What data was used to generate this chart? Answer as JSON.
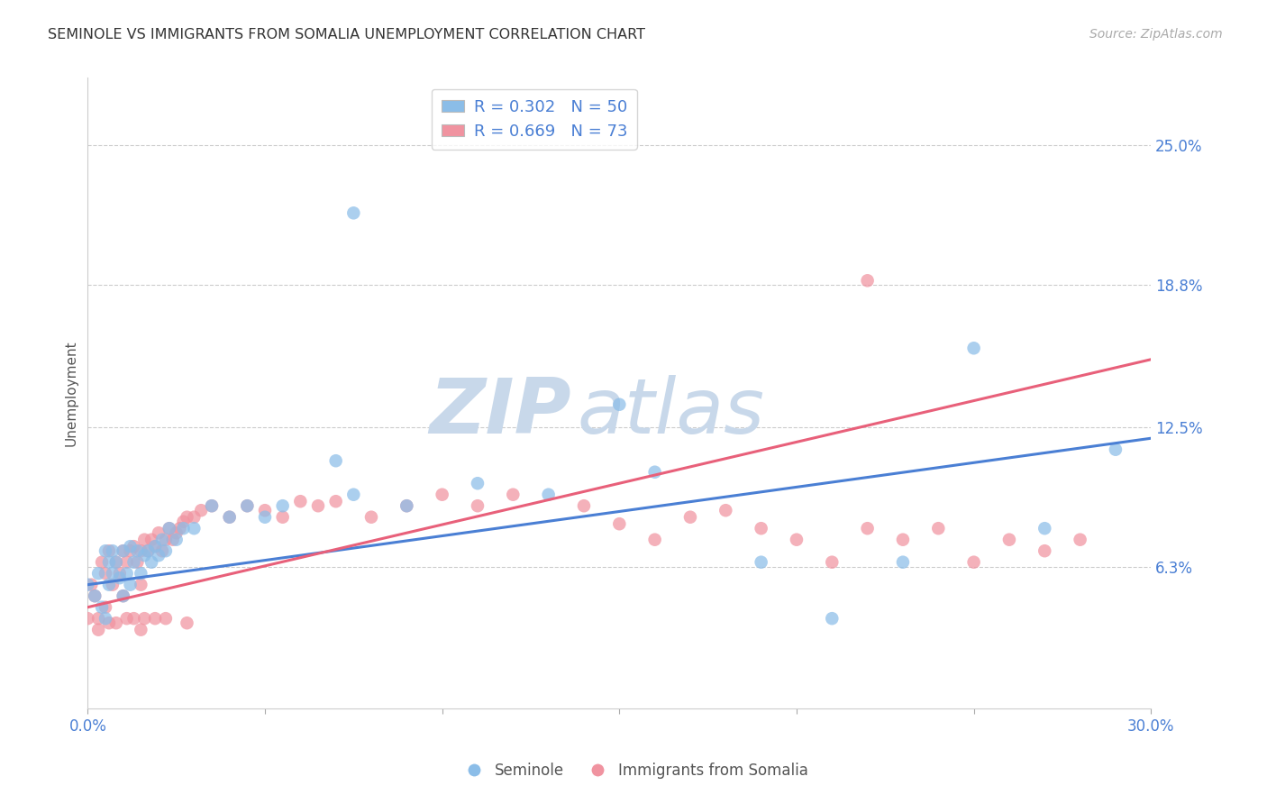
{
  "title": "SEMINOLE VS IMMIGRANTS FROM SOMALIA UNEMPLOYMENT CORRELATION CHART",
  "source": "Source: ZipAtlas.com",
  "ylabel": "Unemployment",
  "ytick_labels": [
    "6.3%",
    "12.5%",
    "18.8%",
    "25.0%"
  ],
  "ytick_values": [
    0.063,
    0.125,
    0.188,
    0.25
  ],
  "xlim": [
    0.0,
    0.3
  ],
  "ylim": [
    0.0,
    0.28
  ],
  "legend_blue_text": "R = 0.302   N = 50",
  "legend_pink_text": "R = 0.669   N = 73",
  "legend_label_blue": "Seminole",
  "legend_label_pink": "Immigrants from Somalia",
  "blue_color": "#8bbde8",
  "pink_color": "#f093a0",
  "blue_line_color": "#4a7fd4",
  "pink_line_color": "#e8607a",
  "legend_text_color": "#4a7fd4",
  "ytick_color": "#4a7fd4",
  "xtick_color": "#4a7fd4",
  "watermark_zip": "ZIP",
  "watermark_atlas": "atlas",
  "watermark_color": "#c8d8ea",
  "background_color": "#ffffff",
  "blue_scatter_x": [
    0.0,
    0.002,
    0.003,
    0.004,
    0.005,
    0.005,
    0.006,
    0.006,
    0.007,
    0.007,
    0.008,
    0.009,
    0.01,
    0.01,
    0.011,
    0.012,
    0.012,
    0.013,
    0.014,
    0.015,
    0.016,
    0.017,
    0.018,
    0.019,
    0.02,
    0.021,
    0.022,
    0.023,
    0.025,
    0.027,
    0.03,
    0.035,
    0.04,
    0.045,
    0.05,
    0.055,
    0.07,
    0.075,
    0.09,
    0.11,
    0.13,
    0.15,
    0.19,
    0.21,
    0.23,
    0.25,
    0.27,
    0.29,
    0.075,
    0.16
  ],
  "blue_scatter_y": [
    0.055,
    0.05,
    0.06,
    0.045,
    0.04,
    0.07,
    0.055,
    0.065,
    0.06,
    0.07,
    0.065,
    0.058,
    0.05,
    0.07,
    0.06,
    0.055,
    0.072,
    0.065,
    0.07,
    0.06,
    0.068,
    0.07,
    0.065,
    0.072,
    0.068,
    0.075,
    0.07,
    0.08,
    0.075,
    0.08,
    0.08,
    0.09,
    0.085,
    0.09,
    0.085,
    0.09,
    0.11,
    0.095,
    0.09,
    0.1,
    0.095,
    0.135,
    0.065,
    0.04,
    0.065,
    0.16,
    0.08,
    0.115,
    0.22,
    0.105
  ],
  "pink_scatter_x": [
    0.0,
    0.001,
    0.002,
    0.003,
    0.004,
    0.005,
    0.005,
    0.006,
    0.007,
    0.008,
    0.009,
    0.01,
    0.01,
    0.011,
    0.012,
    0.013,
    0.014,
    0.015,
    0.015,
    0.016,
    0.017,
    0.018,
    0.019,
    0.02,
    0.021,
    0.022,
    0.023,
    0.024,
    0.025,
    0.026,
    0.027,
    0.028,
    0.03,
    0.032,
    0.035,
    0.04,
    0.045,
    0.05,
    0.055,
    0.06,
    0.065,
    0.07,
    0.08,
    0.09,
    0.1,
    0.11,
    0.12,
    0.14,
    0.15,
    0.16,
    0.17,
    0.18,
    0.19,
    0.2,
    0.22,
    0.23,
    0.24,
    0.25,
    0.26,
    0.27,
    0.28,
    0.21,
    0.015,
    0.003,
    0.006,
    0.008,
    0.011,
    0.013,
    0.016,
    0.019,
    0.022,
    0.028,
    0.22
  ],
  "pink_scatter_y": [
    0.04,
    0.055,
    0.05,
    0.04,
    0.065,
    0.06,
    0.045,
    0.07,
    0.055,
    0.065,
    0.06,
    0.05,
    0.07,
    0.065,
    0.07,
    0.072,
    0.065,
    0.07,
    0.055,
    0.075,
    0.07,
    0.075,
    0.072,
    0.078,
    0.07,
    0.075,
    0.08,
    0.075,
    0.078,
    0.08,
    0.083,
    0.085,
    0.085,
    0.088,
    0.09,
    0.085,
    0.09,
    0.088,
    0.085,
    0.092,
    0.09,
    0.092,
    0.085,
    0.09,
    0.095,
    0.09,
    0.095,
    0.09,
    0.082,
    0.075,
    0.085,
    0.088,
    0.08,
    0.075,
    0.08,
    0.075,
    0.08,
    0.065,
    0.075,
    0.07,
    0.075,
    0.065,
    0.035,
    0.035,
    0.038,
    0.038,
    0.04,
    0.04,
    0.04,
    0.04,
    0.04,
    0.038,
    0.19
  ],
  "blue_trendline_x": [
    0.0,
    0.3
  ],
  "blue_trendline_y": [
    0.055,
    0.12
  ],
  "pink_trendline_x": [
    0.0,
    0.3
  ],
  "pink_trendline_y": [
    0.045,
    0.155
  ]
}
